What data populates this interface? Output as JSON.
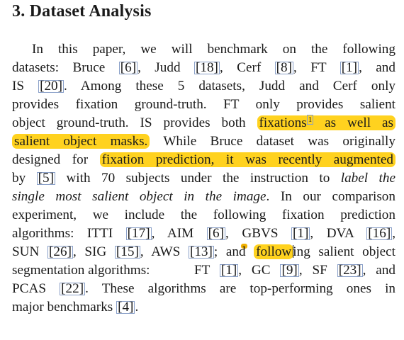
{
  "section": {
    "number": "3.",
    "title": "Dataset Analysis"
  },
  "paragraph": {
    "l1": "In this paper, we will benchmark on the following",
    "l2a": "datasets: Bruce ",
    "c6a": "[6]",
    "l2b": ", Judd ",
    "c18": "[18]",
    "l2c": ", Cerf ",
    "c8": "[8]",
    "l2d": ", FT ",
    "c1a": "[1]",
    "l2e": ", and",
    "l3a": "IS ",
    "c20": "[20]",
    "l3b": ".  Among these 5 datasets, Judd and Cerf only",
    "l4": "provides fixation ground-truth.  FT only provides salient",
    "l5a": "object ground-truth. IS provides both ",
    "l5hl": "fixations",
    "fn1": "1",
    "l5hl2": " as well as",
    "l6hl": "salient object masks.",
    "l6b": " While Bruce dataset was originally",
    "l7a": "designed for ",
    "l7hl": "fixation prediction, it was recently augmented",
    "l8a": "by ",
    "c5": "[5]",
    "l8b": " with 70 subjects under the instruction to ",
    "l8it": "label the",
    "l9it": "single most salient object in the image",
    "l9b": ".  In our comparison",
    "l10": "experiment, we include the following fixation prediction",
    "l11a": "algorithms: ITTI ",
    "c17": "[17]",
    "l11b": ", AIM ",
    "c6b": "[6]",
    "l11c": ", GBVS ",
    "c1b": "[1]",
    "l11d": ", DVA ",
    "c16": "[16]",
    "l11e": ",",
    "l12a": "SUN ",
    "c26": "[26]",
    "l12b": ", SIG ",
    "c15": "[15]",
    "l12c": ", AWS ",
    "c13": "[13]",
    "l12d": "; and ",
    "l12hl": "follow",
    "l12e": "ing salient object",
    "l13": "segmentation algorithms:",
    "l14a": "FT ",
    "c1c": "[1]",
    "l14b": ", GC ",
    "c9": "[9]",
    "l14c": ", SF ",
    "c23": "[23]",
    "l14d": ", and",
    "l15a": "PCAS ",
    "c22": "[22]",
    "l15b": ".  These algorithms are top-performing ones in",
    "l16a": "major benchmarks ",
    "c4": "[4]",
    "l16b": "."
  },
  "colors": {
    "highlight": "#ffd21f",
    "cite_border": "#8aa0c8"
  }
}
